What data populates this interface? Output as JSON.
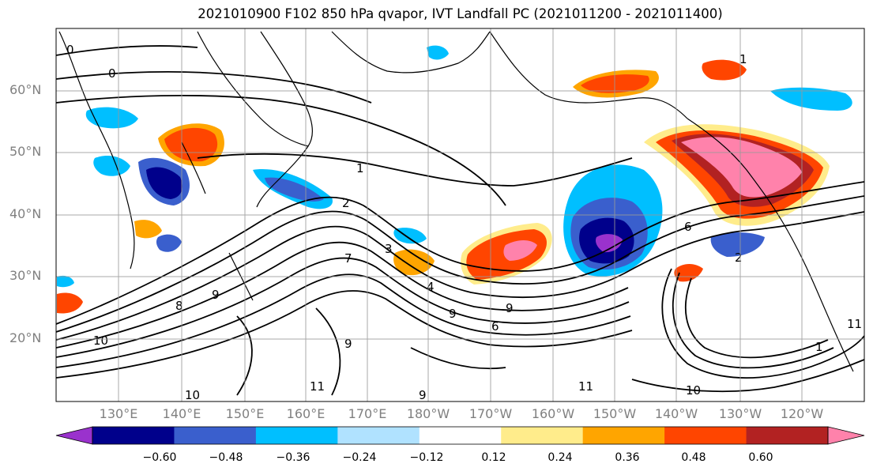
{
  "title": "2021010900 F102 850 hPa qvapor, IVT Landfall PC (2021011200 - 2021011400)",
  "lat_labels": [
    "60°N",
    "50°N",
    "40°N",
    "30°N",
    "20°N"
  ],
  "lon_labels": [
    "130°E",
    "140°E",
    "150°E",
    "160°E",
    "170°E",
    "180°W",
    "170°W",
    "160°W",
    "150°W",
    "140°W",
    "130°W",
    "120°W"
  ],
  "colorbar": {
    "colors": [
      "#9a32cd",
      "#00008b",
      "#3a5fcd",
      "#00bfff",
      "#b0e2ff",
      "#ffffff",
      "#ffec8b",
      "#ffa500",
      "#ff4500",
      "#b22222",
      "#ff82ab"
    ],
    "ticks": [
      "−0.60",
      "−0.48",
      "−0.36",
      "−0.24",
      "−0.12",
      "0.12",
      "0.24",
      "0.36",
      "0.48",
      "0.60"
    ]
  },
  "contour_labels": [
    "0",
    "0",
    "1",
    "2",
    "3",
    "4",
    "6",
    "7",
    "8",
    "9",
    "9",
    "9",
    "9",
    "10",
    "10",
    "11",
    "11",
    "10",
    "11",
    "1",
    "1",
    "2",
    "6",
    "9"
  ]
}
